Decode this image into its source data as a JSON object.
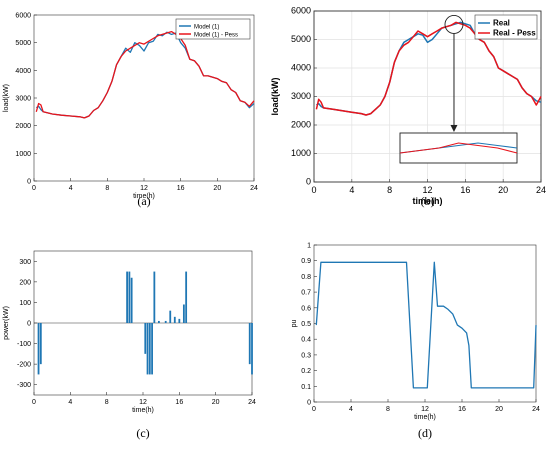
{
  "chart_data": [
    {
      "type": "line",
      "caption": "(a)",
      "xlabel": "time(h)",
      "ylabel": "load(kW)",
      "xlim": [
        0,
        24
      ],
      "ylim": [
        0,
        6000
      ],
      "xticks": [
        0,
        4,
        8,
        12,
        16,
        20,
        24
      ],
      "yticks": [
        0,
        1000,
        2000,
        3000,
        4000,
        5000,
        6000
      ],
      "legend": "top-right",
      "series": [
        {
          "name": "Model (1)",
          "color": "#1f77b4",
          "x": [
            0.25,
            0.5,
            0.75,
            1,
            2,
            3,
            4,
            5,
            5.5,
            6,
            6.5,
            7,
            7.5,
            8,
            8.5,
            9,
            9.5,
            10,
            10.5,
            11,
            11.5,
            12,
            12.5,
            13,
            13.5,
            14,
            14.5,
            15,
            15.5,
            16,
            16.5,
            17,
            17.5,
            18,
            18.5,
            19,
            19.5,
            20,
            20.5,
            21,
            21.5,
            22,
            22.5,
            23,
            23.5,
            24
          ],
          "y": [
            2650,
            2700,
            2580,
            2500,
            2420,
            2380,
            2350,
            2320,
            2280,
            2350,
            2550,
            2650,
            2900,
            3200,
            3600,
            4200,
            4500,
            4800,
            4650,
            5000,
            4900,
            4700,
            5000,
            5050,
            5300,
            5250,
            5380,
            5300,
            5350,
            5000,
            4800,
            4400,
            4350,
            4150,
            3800,
            3800,
            3750,
            3700,
            3600,
            3550,
            3300,
            3200,
            2900,
            2850,
            2650,
            2800
          ]
        },
        {
          "name": "Model (1) - Pess",
          "color": "#e8141b",
          "x": [
            0.25,
            0.5,
            0.75,
            1,
            2,
            3,
            4,
            5,
            5.5,
            6,
            6.5,
            7,
            7.5,
            8,
            8.5,
            9,
            9.5,
            10,
            10.5,
            11,
            11.5,
            12,
            12.5,
            13,
            13.5,
            14,
            14.5,
            15,
            15.5,
            16,
            16.5,
            17,
            17.5,
            18,
            18.5,
            19,
            19.5,
            20,
            20.5,
            21,
            21.5,
            22,
            22.5,
            23,
            23.5,
            24
          ],
          "y": [
            2500,
            2800,
            2750,
            2500,
            2420,
            2380,
            2350,
            2320,
            2280,
            2350,
            2550,
            2650,
            2900,
            3200,
            3600,
            4200,
            4500,
            4700,
            4800,
            4900,
            5000,
            4950,
            5050,
            5150,
            5250,
            5300,
            5350,
            5400,
            5300,
            5150,
            4900,
            4400,
            4350,
            4150,
            3800,
            3800,
            3750,
            3700,
            3600,
            3550,
            3300,
            3200,
            2900,
            2850,
            2700,
            2900
          ]
        }
      ]
    },
    {
      "type": "line",
      "caption": "(b)",
      "xlabel": "time(h)",
      "ylabel": "load(kW)",
      "xlim": [
        0,
        24
      ],
      "ylim": [
        0,
        6000
      ],
      "xticks": [
        0,
        4,
        8,
        12,
        16,
        20,
        24
      ],
      "yticks": [
        0,
        1000,
        2000,
        3000,
        4000,
        5000,
        6000
      ],
      "legend": "top-right",
      "series": [
        {
          "name": "Real",
          "color": "#1f77b4",
          "x": [
            0.25,
            0.5,
            0.75,
            1,
            2,
            3,
            4,
            5,
            5.5,
            6,
            6.5,
            7,
            7.5,
            8,
            8.5,
            9,
            9.5,
            10,
            10.5,
            11,
            11.5,
            12,
            12.5,
            13,
            13.5,
            14,
            14.5,
            15,
            15.5,
            16,
            16.5,
            17,
            17.5,
            18,
            18.5,
            19,
            19.5,
            20,
            20.5,
            21,
            21.5,
            22,
            22.5,
            23,
            23.5,
            24
          ],
          "y": [
            2700,
            2750,
            2650,
            2600,
            2550,
            2500,
            2450,
            2400,
            2350,
            2400,
            2550,
            2700,
            3000,
            3500,
            4200,
            4600,
            4900,
            5000,
            5100,
            5200,
            5150,
            4900,
            5000,
            5200,
            5400,
            5450,
            5500,
            5550,
            5600,
            5550,
            5500,
            5200,
            5000,
            4900,
            4600,
            4400,
            4000,
            3900,
            3800,
            3700,
            3600,
            3300,
            3100,
            3000,
            2850,
            2800
          ]
        },
        {
          "name": "Real - Pess",
          "color": "#e8141b",
          "x": [
            0.25,
            0.5,
            0.75,
            1,
            2,
            3,
            4,
            5,
            5.5,
            6,
            6.5,
            7,
            7.5,
            8,
            8.5,
            9,
            9.5,
            10,
            10.5,
            11,
            11.5,
            12,
            12.5,
            13,
            13.5,
            14,
            14.5,
            15,
            15.5,
            16,
            16.5,
            17,
            17.5,
            18,
            18.5,
            19,
            19.5,
            20,
            20.5,
            21,
            21.5,
            22,
            22.5,
            23,
            23.5,
            24
          ],
          "y": [
            2550,
            2900,
            2800,
            2600,
            2550,
            2500,
            2450,
            2400,
            2350,
            2400,
            2550,
            2700,
            3000,
            3500,
            4200,
            4600,
            4800,
            4900,
            5100,
            5300,
            5200,
            5100,
            5200,
            5300,
            5400,
            5450,
            5500,
            5600,
            5550,
            5500,
            5400,
            5200,
            5000,
            4900,
            4600,
            4400,
            4000,
            3900,
            3800,
            3700,
            3600,
            3300,
            3100,
            3000,
            2700,
            3000
          ]
        }
      ]
    },
    {
      "type": "bar",
      "caption": "(c)",
      "xlabel": "time(h)",
      "ylabel": "power(kW)",
      "xlim": [
        0,
        24
      ],
      "ylim": [
        -350,
        350
      ],
      "xticks": [
        0,
        4,
        8,
        12,
        16,
        20,
        24
      ],
      "yticks": [
        -300,
        -200,
        -100,
        0,
        100,
        200,
        300
      ],
      "color": "#1f77b4",
      "x": [
        0.5,
        0.75,
        10.25,
        10.5,
        10.75,
        12.25,
        12.5,
        12.75,
        13.0,
        13.25,
        13.75,
        14.5,
        15.0,
        15.5,
        16.0,
        16.5,
        16.75,
        23.75,
        24.0
      ],
      "values": [
        -250,
        -200,
        250,
        250,
        220,
        -150,
        -250,
        -250,
        -250,
        250,
        10,
        10,
        60,
        30,
        20,
        90,
        250,
        -200,
        -250
      ]
    },
    {
      "type": "line",
      "caption": "(d)",
      "xlabel": "time(h)",
      "ylabel": "pu",
      "xlim": [
        0,
        24
      ],
      "ylim": [
        0,
        1
      ],
      "xticks": [
        0,
        4,
        8,
        12,
        16,
        20,
        24
      ],
      "yticks": [
        0,
        0.1,
        0.2,
        0.3,
        0.4,
        0.5,
        0.6,
        0.7,
        0.8,
        0.9,
        1
      ],
      "series": [
        {
          "color": "#1f77b4",
          "x": [
            0.25,
            0.75,
            10.0,
            10.75,
            12.25,
            13.0,
            13.35,
            14.0,
            14.5,
            15.0,
            15.5,
            16.0,
            16.5,
            16.75,
            17.0,
            23.75,
            24.0
          ],
          "y": [
            0.49,
            0.89,
            0.89,
            0.09,
            0.09,
            0.89,
            0.61,
            0.61,
            0.59,
            0.56,
            0.49,
            0.47,
            0.44,
            0.36,
            0.09,
            0.09,
            0.49
          ]
        }
      ]
    }
  ]
}
